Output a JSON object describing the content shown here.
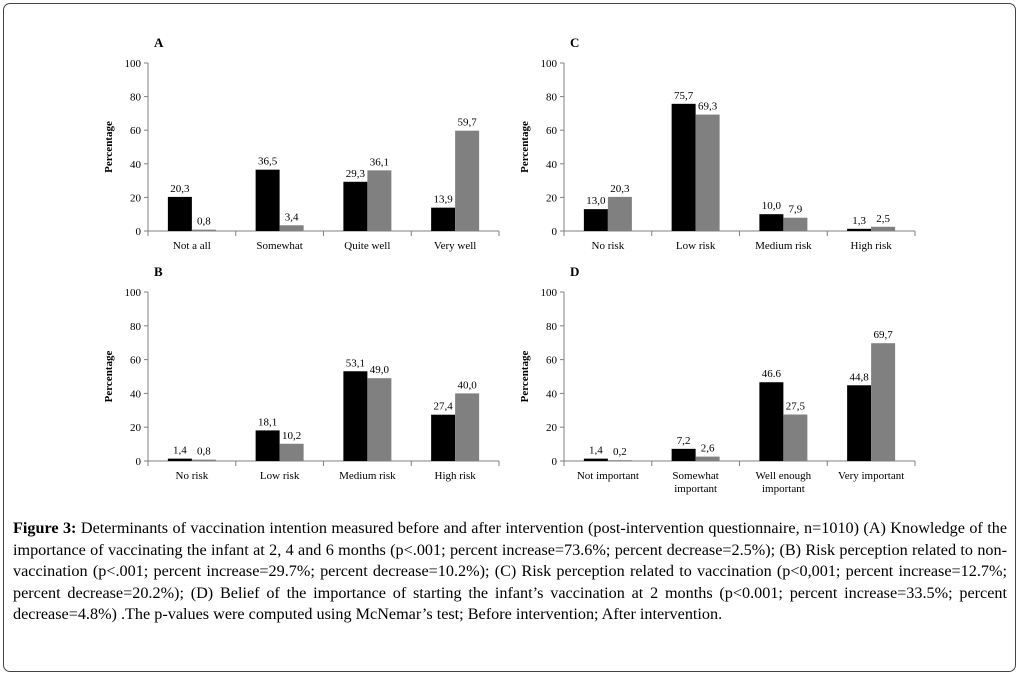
{
  "figure": {
    "caption_label": "Figure 3:",
    "caption_text": "Determinants of vaccination intention measured before and after intervention (post-intervention questionnaire, n=1010) (A) Knowledge of the importance of vaccinating the infant at 2, 4 and 6 months (p<.001; percent increase=73.6%; percent decrease=2.5%); (B) Risk perception related to non-vaccination (p<.001; percent increase=29.7%; percent decrease=10.2%); (C) Risk perception related to vaccination (p<0,001; percent increase=12.7%; percent decrease=20.2%); (D) Belief of the importance of starting the infant’s vaccination at 2 months (p<0.001; percent increase=33.5%; percent decrease=4.8%) .The p-values were computed using McNemar’s test; Before intervention; After intervention."
  },
  "colors": {
    "before": "#000000",
    "after": "#808080",
    "axis": "#808080",
    "frame": "#444444"
  },
  "chart_data": [
    {
      "panel": "A",
      "type": "bar",
      "categories": [
        [
          "Not a all"
        ],
        [
          "Somewhat"
        ],
        [
          "Quite well"
        ],
        [
          "Very well"
        ]
      ],
      "series": [
        {
          "values": [
            20.3,
            36.5,
            29.3,
            13.9
          ],
          "labels": [
            "20,3",
            "36,5",
            "29,3",
            "13,9"
          ],
          "color": "#000000"
        },
        {
          "values": [
            0.8,
            3.4,
            36.1,
            59.7
          ],
          "labels": [
            "0,8",
            "3,4",
            "36,1",
            "59,7"
          ],
          "color": "#808080"
        }
      ],
      "ylabel": "Percentage",
      "ylim": [
        0,
        100
      ],
      "yticks": [
        "0",
        "20",
        "40",
        "60",
        "80",
        "100"
      ],
      "grid": false
    },
    {
      "panel": "B",
      "type": "bar",
      "categories": [
        [
          "No risk"
        ],
        [
          "Low risk"
        ],
        [
          "Medium risk"
        ],
        [
          "High risk"
        ]
      ],
      "series": [
        {
          "values": [
            1.4,
            18.1,
            53.1,
            27.4
          ],
          "labels": [
            "1,4",
            "18,1",
            "53,1",
            "27,4"
          ],
          "color": "#000000"
        },
        {
          "values": [
            0.8,
            10.2,
            49.0,
            40.0
          ],
          "labels": [
            "0,8",
            "10,2",
            "49,0",
            "40,0"
          ],
          "color": "#808080"
        }
      ],
      "ylabel": "Percentage",
      "ylim": [
        0,
        100
      ],
      "yticks": [
        "0",
        "20",
        "40",
        "60",
        "80",
        "100"
      ],
      "grid": false
    },
    {
      "panel": "C",
      "type": "bar",
      "categories": [
        [
          "No risk"
        ],
        [
          "Low risk"
        ],
        [
          "Medium risk"
        ],
        [
          "High risk"
        ]
      ],
      "series": [
        {
          "values": [
            13.0,
            75.7,
            10.0,
            1.3
          ],
          "labels": [
            "13,0",
            "75,7",
            "10,0",
            "1,3"
          ],
          "color": "#000000"
        },
        {
          "values": [
            20.3,
            69.3,
            7.9,
            2.5
          ],
          "labels": [
            "20,3",
            "69,3",
            "7,9",
            "2,5"
          ],
          "color": "#808080"
        }
      ],
      "ylabel": "Percentage",
      "ylim": [
        0,
        100
      ],
      "yticks": [
        "0",
        "20",
        "40",
        "60",
        "80",
        "100"
      ],
      "grid": false
    },
    {
      "panel": "D",
      "type": "bar",
      "categories": [
        [
          "Not important"
        ],
        [
          "Somewhat",
          "important"
        ],
        [
          "Well enough",
          "important"
        ],
        [
          "Very important"
        ]
      ],
      "series": [
        {
          "values": [
            1.4,
            7.2,
            46.6,
            44.8
          ],
          "labels": [
            "1,4",
            "7,2",
            "46.6",
            "44,8"
          ],
          "color": "#000000"
        },
        {
          "values": [
            0.2,
            2.6,
            27.5,
            69.7
          ],
          "labels": [
            "0,2",
            "2,6",
            "27,5",
            "69,7"
          ],
          "color": "#808080"
        }
      ],
      "ylabel": "Percentage",
      "ylim": [
        0,
        100
      ],
      "yticks": [
        "0",
        "20",
        "40",
        "60",
        "80",
        "100"
      ],
      "grid": false
    }
  ]
}
